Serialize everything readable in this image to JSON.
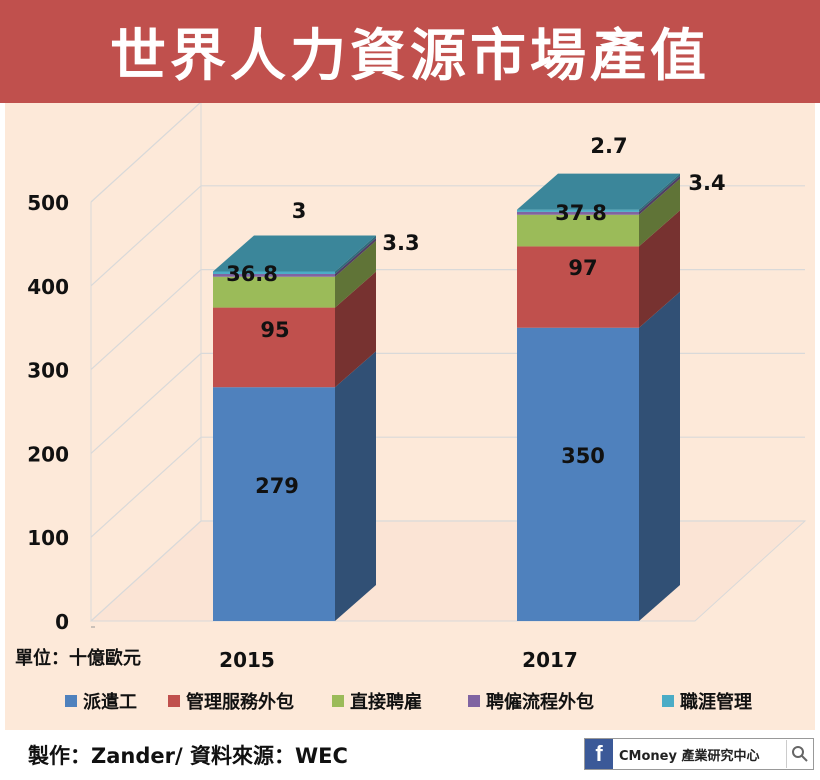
{
  "title": "世界人力資源市場產值",
  "unit_label": "單位：十億歐元",
  "credit": "製作：Zander/ 資料來源：WEC",
  "brand": "CMoney 產業研究中心",
  "colors": {
    "title_bg": "#c0504d",
    "panel_bg": "#fde9d9"
  },
  "chart_data": {
    "type": "bar",
    "stacked": true,
    "three_d": true,
    "categories": [
      "2015",
      "2017"
    ],
    "series": [
      {
        "name": "派遣工",
        "values": [
          279,
          350
        ],
        "color": "#4f81bd"
      },
      {
        "name": "管理服務外包",
        "values": [
          95,
          97
        ],
        "color": "#c0504d"
      },
      {
        "name": "直接聘雇",
        "values": [
          36.8,
          37.8
        ],
        "color": "#9bbb59"
      },
      {
        "name": "聘僱流程外包",
        "values": [
          3.3,
          3.4
        ],
        "color": "#8064a2"
      },
      {
        "name": "職涯管理",
        "values": [
          3,
          2.7
        ],
        "color": "#4bacc6"
      }
    ],
    "y_ticks": [
      0,
      100,
      200,
      300,
      400,
      500
    ],
    "ylim": [
      0,
      500
    ],
    "grid": true,
    "legend_position": "bottom"
  }
}
